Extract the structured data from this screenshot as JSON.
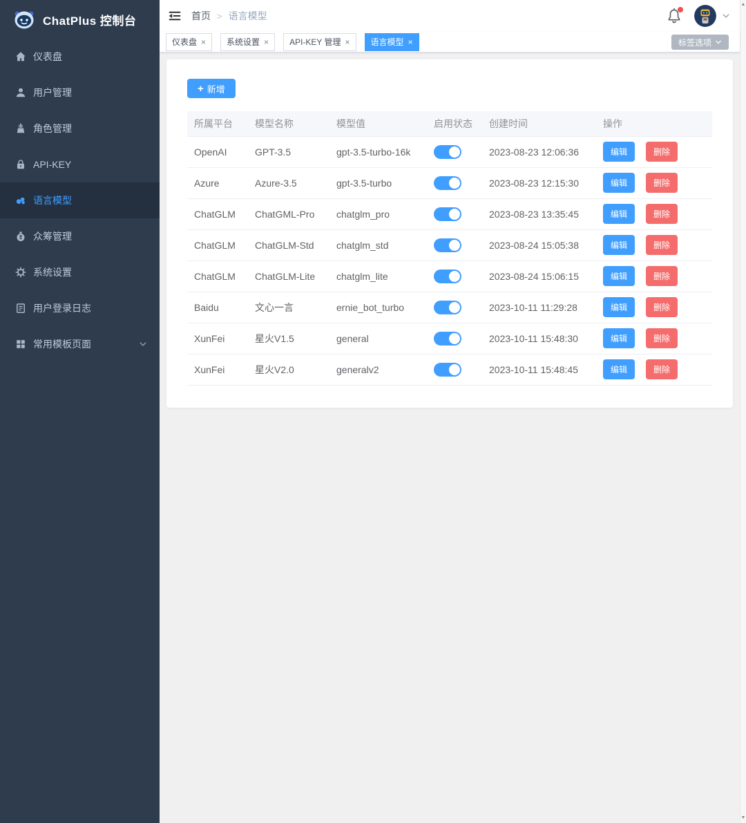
{
  "app": {
    "title": "ChatPlus 控制台"
  },
  "sidebar": {
    "items": [
      {
        "id": "dashboard",
        "icon": "home-icon",
        "label": "仪表盘",
        "active": false,
        "expandable": false
      },
      {
        "id": "user-management",
        "icon": "user-icon",
        "label": "用户管理",
        "active": false,
        "expandable": false
      },
      {
        "id": "role-management",
        "icon": "role-icon",
        "label": "角色管理",
        "active": false,
        "expandable": false
      },
      {
        "id": "api-key",
        "icon": "lock-icon",
        "label": "API-KEY",
        "active": false,
        "expandable": false
      },
      {
        "id": "language-models",
        "icon": "model-icon",
        "label": "语言模型",
        "active": true,
        "expandable": false
      },
      {
        "id": "crowdfunding",
        "icon": "crowdfund-icon",
        "label": "众筹管理",
        "active": false,
        "expandable": false
      },
      {
        "id": "system-settings",
        "icon": "gear-icon",
        "label": "系统设置",
        "active": false,
        "expandable": false
      },
      {
        "id": "login-logs",
        "icon": "log-icon",
        "label": "用户登录日志",
        "active": false,
        "expandable": false
      },
      {
        "id": "template-pages",
        "icon": "grid-icon",
        "label": "常用模板页面",
        "active": false,
        "expandable": true
      }
    ]
  },
  "navbar": {
    "breadcrumb_home": "首页",
    "breadcrumb_separator": ">",
    "breadcrumb_current": "语言模型"
  },
  "tabs_bar": {
    "tabs": [
      {
        "label": "仪表盘",
        "active": false
      },
      {
        "label": "系统设置",
        "active": false
      },
      {
        "label": "API-KEY 管理",
        "active": false
      },
      {
        "label": "语言模型",
        "active": true
      }
    ],
    "close_glyph": "×",
    "options_label": "标签选项"
  },
  "toolbar": {
    "add_label": "新增",
    "plus_glyph": "+"
  },
  "table": {
    "headers": [
      "所属平台",
      "模型名称",
      "模型值",
      "启用状态",
      "创建时间",
      "操作"
    ],
    "edit_label": "编辑",
    "delete_label": "删除",
    "rows": [
      {
        "platform": "OpenAI",
        "model_name": "GPT-3.5",
        "model_value": "gpt-3.5-turbo-16k",
        "enabled": true,
        "created_at": "2023-08-23 12:06:36"
      },
      {
        "platform": "Azure",
        "model_name": "Azure-3.5",
        "model_value": "gpt-3.5-turbo",
        "enabled": true,
        "created_at": "2023-08-23 12:15:30"
      },
      {
        "platform": "ChatGLM",
        "model_name": "ChatGML-Pro",
        "model_value": "chatglm_pro",
        "enabled": true,
        "created_at": "2023-08-23 13:35:45"
      },
      {
        "platform": "ChatGLM",
        "model_name": "ChatGLM-Std",
        "model_value": "chatglm_std",
        "enabled": true,
        "created_at": "2023-08-24 15:05:38"
      },
      {
        "platform": "ChatGLM",
        "model_name": "ChatGLM-Lite",
        "model_value": "chatglm_lite",
        "enabled": true,
        "created_at": "2023-08-24 15:06:15"
      },
      {
        "platform": "Baidu",
        "model_name": "文心一言",
        "model_value": "ernie_bot_turbo",
        "enabled": true,
        "created_at": "2023-10-11 11:29:28"
      },
      {
        "platform": "XunFei",
        "model_name": "星火V1.5",
        "model_value": "general",
        "enabled": true,
        "created_at": "2023-10-11 15:48:30"
      },
      {
        "platform": "XunFei",
        "model_name": "星火V2.0",
        "model_value": "generalv2",
        "enabled": true,
        "created_at": "2023-10-11 15:48:45"
      }
    ]
  },
  "scrollbar": {
    "up_glyph": "▲",
    "down_glyph": "▼"
  },
  "colors": {
    "accent": "#409eff",
    "danger": "#f56c6c",
    "sidebar_bg": "#2e3c4e",
    "sidebar_active_bg": "#24303f",
    "sidebar_text": "#bfcbd9",
    "table_header_bg": "#f5f7fa",
    "page_bg": "#f0f0f0",
    "tag_options_bg": "#b0b7c1",
    "notification_dot": "#f05050"
  }
}
